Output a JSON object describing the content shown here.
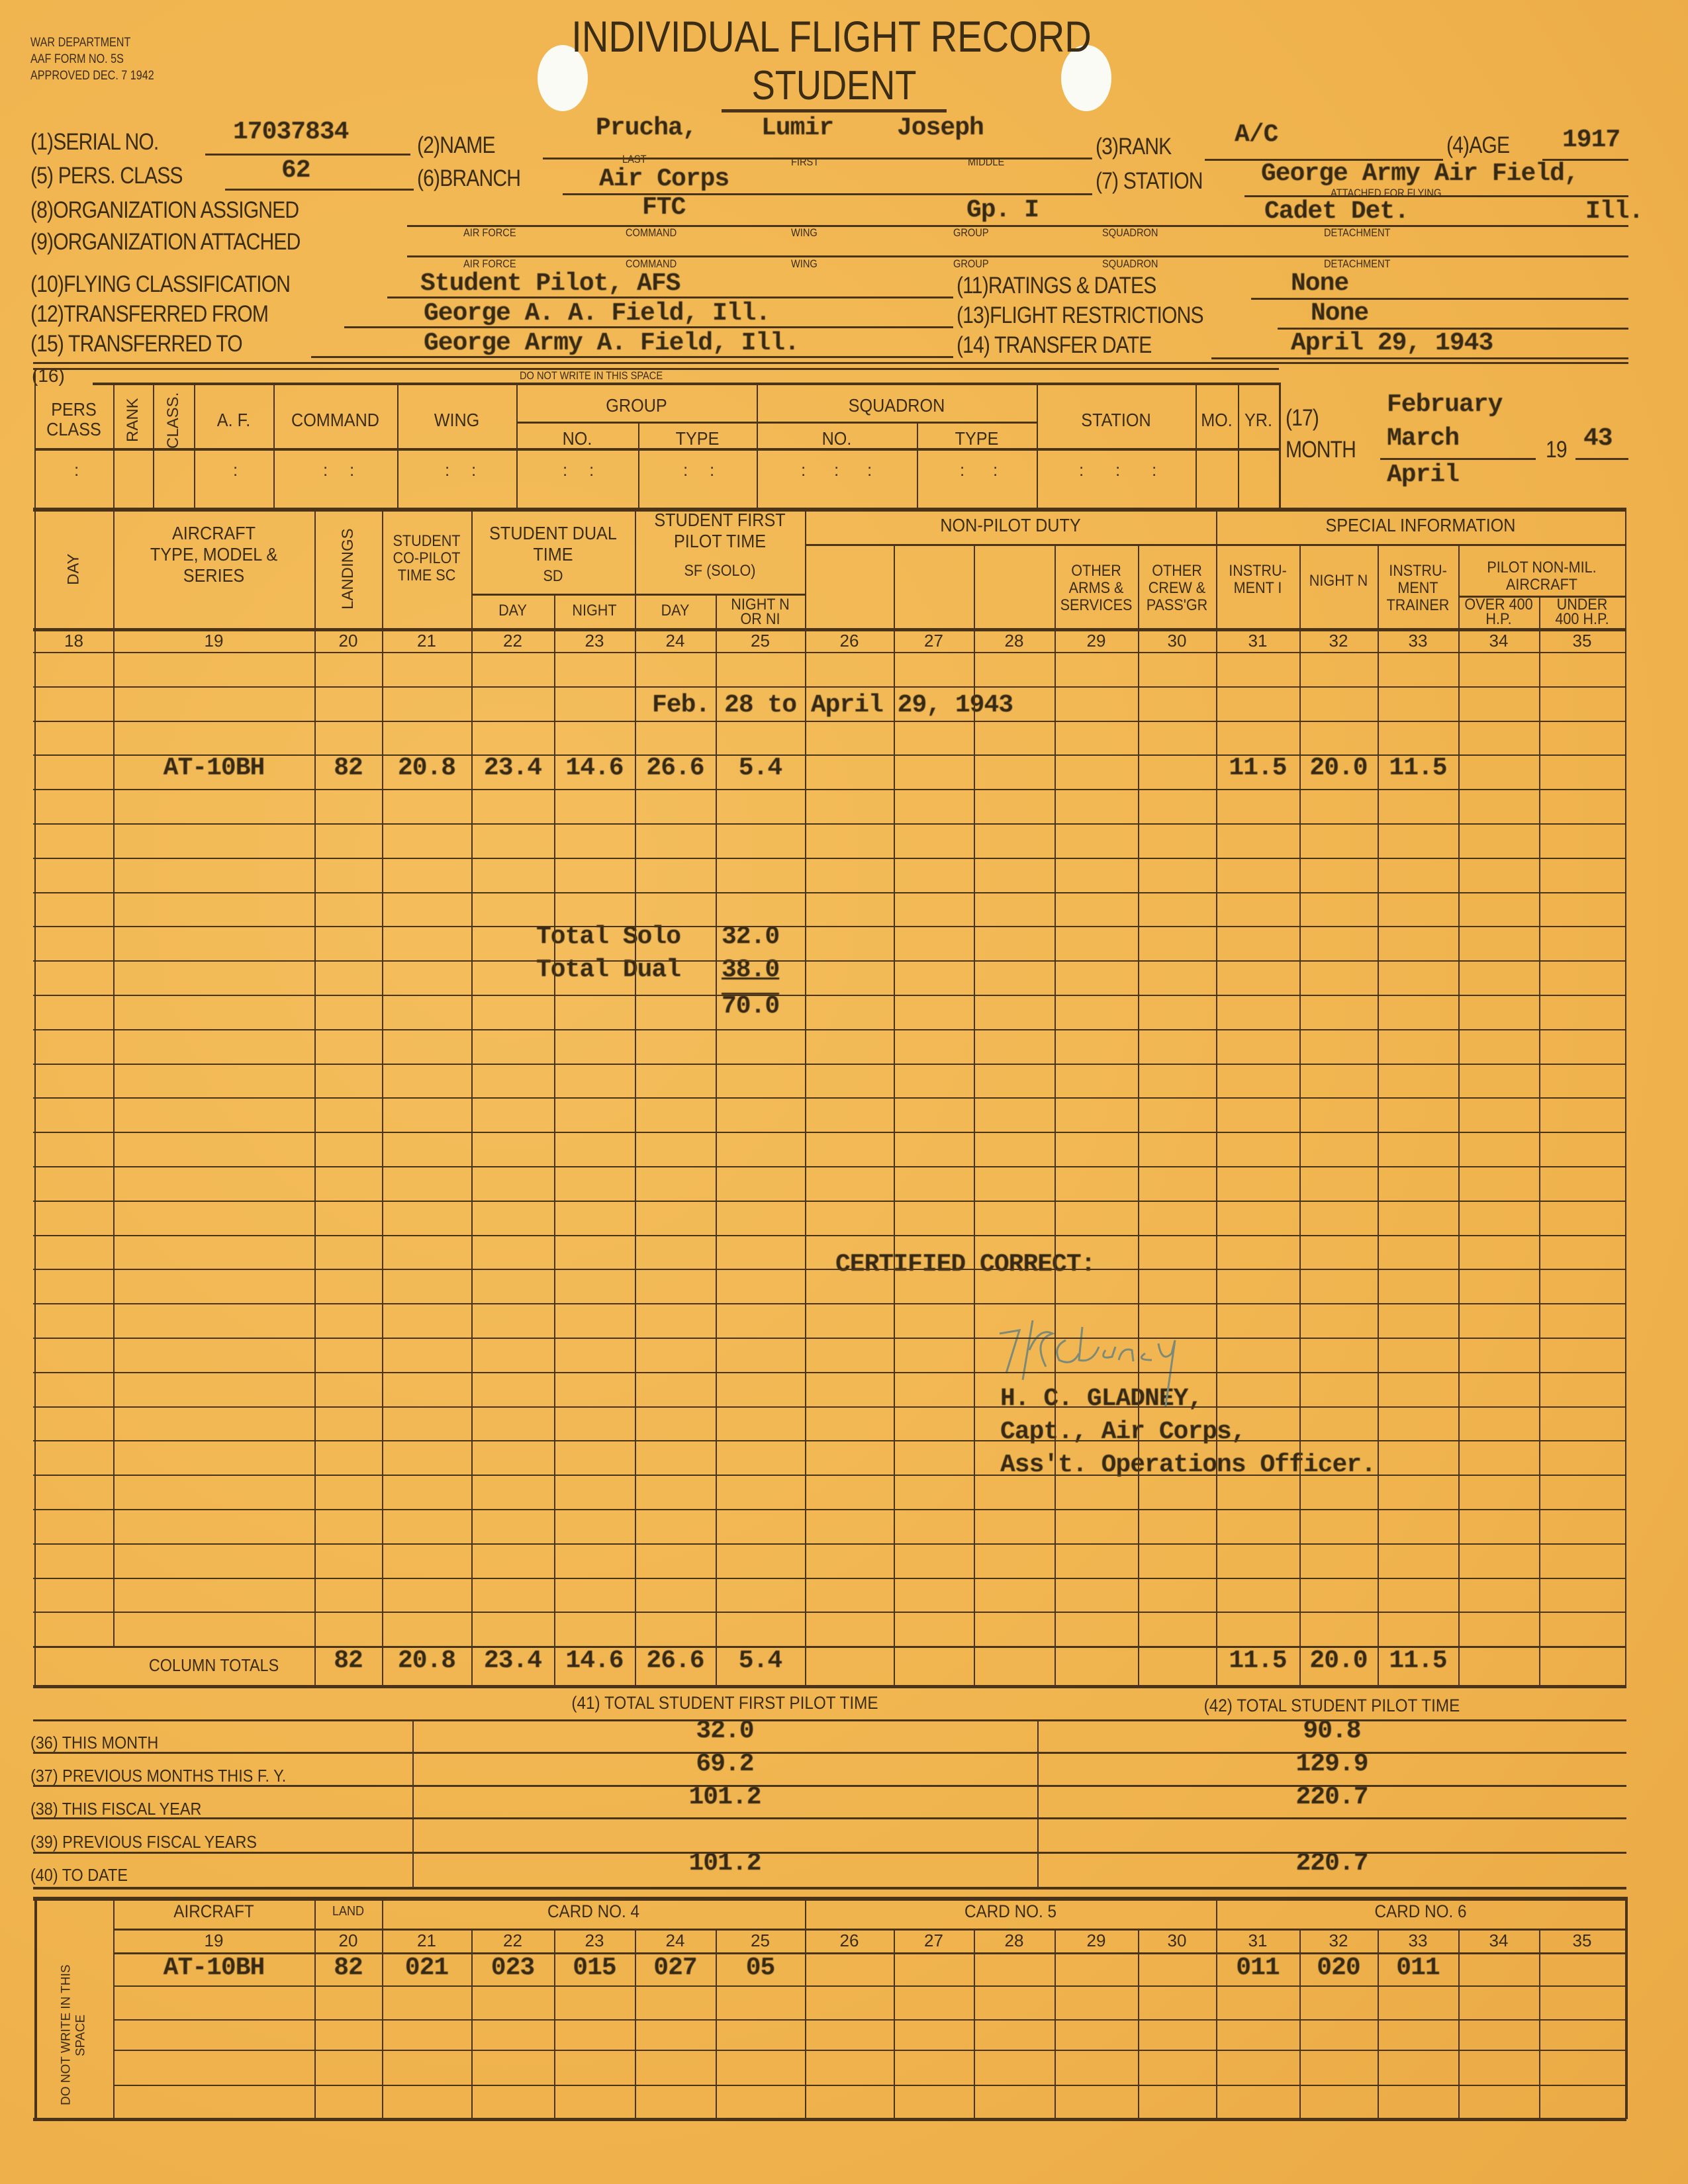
{
  "header": {
    "dept": [
      "WAR DEPARTMENT",
      "AAF FORM NO. 5S",
      "APPROVED DEC. 7 1942"
    ],
    "title": "INDIVIDUAL FLIGHT RECORD",
    "subtitle": "STUDENT"
  },
  "fields": {
    "serial_label": "(1)SERIAL NO.",
    "serial": "17037834",
    "name_label": "(2)NAME",
    "name_last": "Prucha,",
    "name_first": "Lumir",
    "name_middle": "Joseph",
    "last": "LAST",
    "first": "FIRST",
    "middle": "MIDDLE",
    "rank_label": "(3)RANK",
    "rank": "A/C",
    "age_label": "(4)AGE",
    "age": "1917",
    "pers_class_label": "(5) PERS. CLASS",
    "pers_class": "62",
    "branch_label": "(6)BRANCH",
    "branch": "Air Corps",
    "station_label": "(7) STATION",
    "station": "George Army Air Field,",
    "org_assigned_label": "(8)ORGANIZATION ASSIGNED",
    "org_command": "FTC",
    "org_group": "Gp. I",
    "org_detachment": "Cadet Det.",
    "org_state": "Ill.",
    "attached_for_flying": "ATTACHED FOR FLYING",
    "org_attached_label": "(9)ORGANIZATION ATTACHED",
    "org_sublabels": [
      "AIR FORCE",
      "COMMAND",
      "WING",
      "GROUP",
      "SQUADRON",
      "DETACHMENT"
    ],
    "flying_class_label": "(10)FLYING CLASSIFICATION",
    "flying_class": "Student Pilot, AFS",
    "ratings_label": "(11)RATINGS & DATES",
    "ratings": "None",
    "transferred_from_label": "(12)TRANSFERRED FROM",
    "transferred_from": "George A. A. Field, Ill.",
    "restrictions_label": "(13)FLIGHT RESTRICTIONS",
    "restrictions": "None",
    "transferred_to_label": "(15) TRANSFERRED TO",
    "transferred_to": "George Army A. Field, Ill.",
    "transfer_date_label": "(14) TRANSFER DATE",
    "transfer_date": "April 29, 1943"
  },
  "section16": {
    "label": "(16)",
    "notice": "DO NOT WRITE IN THIS SPACE",
    "cols": [
      "PERS CLASS",
      "RANK",
      "CLASS.",
      "A. F.",
      "COMMAND",
      "WING",
      "GROUP",
      "NO.",
      "TYPE",
      "SQUADRON",
      "NO.",
      "TYPE",
      "STATION",
      "MO.",
      "YR."
    ]
  },
  "month": {
    "label_num": "(17)",
    "label": "MONTH",
    "months": [
      "February",
      "March",
      "April"
    ],
    "year_prefix": "19",
    "year": "43"
  },
  "table": {
    "headers": {
      "day": "DAY",
      "aircraft": "AIRCRAFT TYPE, MODEL & SERIES",
      "landings": "LANDINGS",
      "copilot": "STUDENT CO-PILOT TIME SC",
      "dual": "STUDENT DUAL TIME",
      "dual_code": "SD",
      "first_pilot": "STUDENT FIRST PILOT TIME",
      "first_pilot_code": "SF (SOLO)",
      "day_sub": "DAY",
      "night_sub": "NIGHT",
      "night_ni": "NIGHT N OR NI",
      "non_pilot": "NON-PILOT DUTY",
      "other_arms": "OTHER ARMS & SERVICES",
      "other_crew": "OTHER CREW & PASS'GR",
      "special": "SPECIAL INFORMATION",
      "instrument": "INSTRU- MENT I",
      "night": "NIGHT N",
      "trainer": "INSTRU- MENT TRAINER",
      "pilot_nonmil": "PILOT NON-MIL. AIRCRAFT",
      "over": "OVER 400 H.P.",
      "under": "UNDER 400 H.P."
    },
    "col_numbers": [
      "18",
      "19",
      "20",
      "21",
      "22",
      "23",
      "24",
      "25",
      "26",
      "27",
      "28",
      "29",
      "30",
      "31",
      "32",
      "33",
      "34",
      "35"
    ],
    "period": "Feb. 28 to April 29, 1943",
    "entry": {
      "aircraft": "AT-10BH",
      "landings": "82",
      "sc": "20.8",
      "sd_day": "23.4",
      "sd_night": "14.6",
      "sf_day": "26.6",
      "sf_night": "5.4",
      "instrument": "11.5",
      "night": "20.0",
      "trainer": "11.5"
    },
    "total_solo_label": "Total Solo",
    "total_solo": "32.0",
    "total_dual_label": "Total Dual",
    "total_dual": "38.0",
    "grand_total": "70.0",
    "certified": "CERTIFIED CORRECT:",
    "signature_text": "H C Gladney",
    "signer": [
      "H. C. GLADNEY,",
      "Capt., Air Corps,",
      "Ass't. Operations Officer."
    ],
    "totals_label": "COLUMN TOTALS",
    "totals": {
      "landings": "82",
      "sc": "20.8",
      "sd_day": "23.4",
      "sd_night": "14.6",
      "sf_day": "26.6",
      "sf_night": "5.4",
      "instrument": "11.5",
      "night": "20.0",
      "trainer": "11.5"
    }
  },
  "summary": {
    "col41": "(41) TOTAL STUDENT FIRST PILOT TIME",
    "col42": "(42) TOTAL STUDENT PILOT TIME",
    "rows": [
      {
        "label": "(36) THIS MONTH",
        "first": "32.0",
        "total": "90.8"
      },
      {
        "label": "(37) PREVIOUS MONTHS THIS F. Y.",
        "first": "69.2",
        "total": "129.9"
      },
      {
        "label": "(38) THIS FISCAL YEAR",
        "first": "101.2",
        "total": "220.7"
      },
      {
        "label": "(39) PREVIOUS FISCAL YEARS",
        "first": "",
        "total": ""
      },
      {
        "label": "(40) TO DATE",
        "first": "101.2",
        "total": "220.7"
      }
    ]
  },
  "card": {
    "side": "DO NOT WRITE IN THIS SPACE",
    "aircraft": "AIRCRAFT",
    "land": "LAND",
    "card4": "CARD NO. 4",
    "card5": "CARD NO. 5",
    "card6": "CARD NO. 6",
    "numbers": [
      "19",
      "20",
      "21",
      "22",
      "23",
      "24",
      "25",
      "26",
      "27",
      "28",
      "29",
      "30",
      "31",
      "32",
      "33",
      "34",
      "35"
    ],
    "values": [
      "AT-10BH",
      "82",
      "021",
      "023",
      "015",
      "027",
      "05",
      "",
      "",
      "",
      "",
      "",
      "011",
      "020",
      "011",
      "",
      ""
    ]
  },
  "colors": {
    "paper": "#f1b651",
    "ink": "#3b2c16",
    "signature": "#7d8a78"
  }
}
